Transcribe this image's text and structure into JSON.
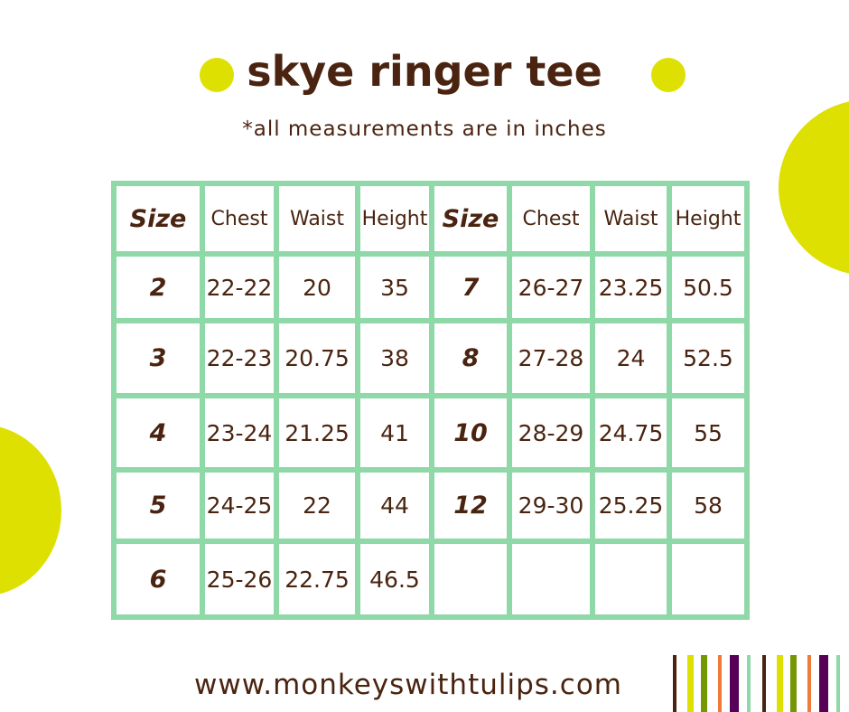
{
  "title": "skye ringer tee",
  "subtitle": "*all measurements are in inches",
  "table": {
    "headers": [
      "Size",
      "Chest",
      "Waist",
      "Height",
      "Size",
      "Chest",
      "Waist",
      "Height"
    ],
    "rows": [
      [
        "2",
        "22-22",
        "20",
        "35",
        "7",
        "26-27",
        "23.25",
        "50.5"
      ],
      [
        "3",
        "22-23",
        "20.75",
        "38",
        "8",
        "27-28",
        "24",
        "52.5"
      ],
      [
        "4",
        "23-24",
        "21.25",
        "41",
        "10",
        "28-29",
        "24.75",
        "55"
      ],
      [
        "5",
        "24-25",
        "22",
        "44",
        "12",
        "29-30",
        "25.25",
        "58"
      ],
      [
        "6",
        "25-26",
        "22.75",
        "46.5",
        "",
        "",
        "",
        ""
      ]
    ]
  },
  "website": "www.monkeyswithtulips.com",
  "colors": {
    "brown": "#4a2410",
    "yellow": "#dde000",
    "grid": "#8fd8a8",
    "olive": "#749600",
    "orange": "#f07a3a",
    "purple": "#560058"
  }
}
